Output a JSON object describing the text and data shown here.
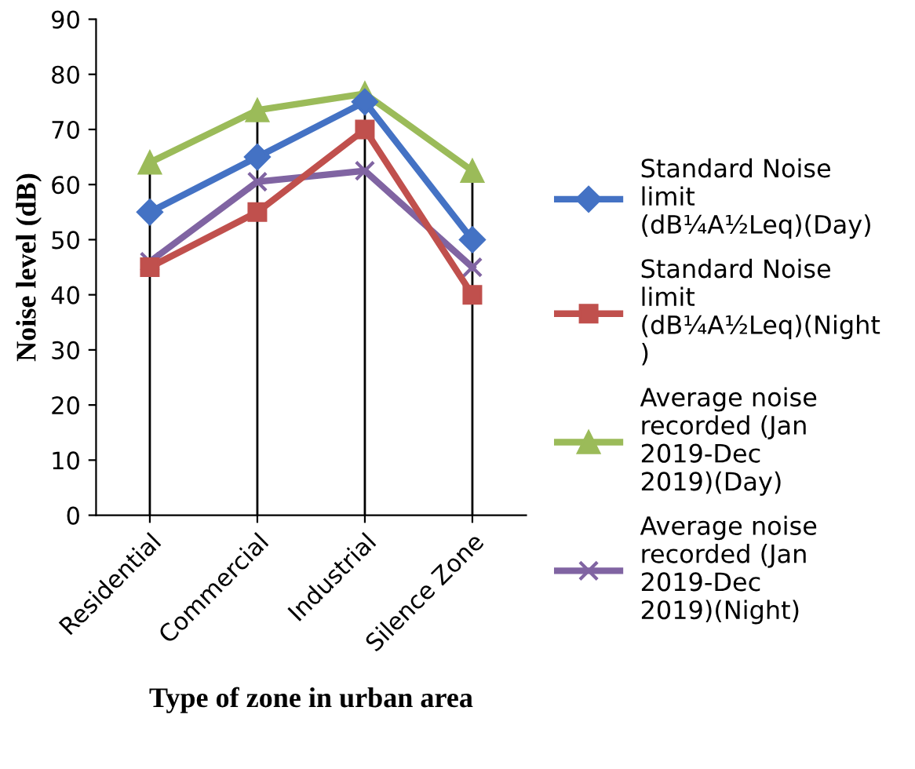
{
  "chart_data": {
    "type": "line",
    "xlabel": "Type of zone in urban area",
    "ylabel": "Noise level (dB)",
    "categories": [
      "Residential",
      "Commercial",
      "Industrial",
      "Silence Zone"
    ],
    "series": [
      {
        "name": "Standard Noise limit (dB¼A½Leq)(Day)",
        "color": "#4472c4",
        "marker": "diamond",
        "values": [
          55,
          65,
          75,
          50
        ]
      },
      {
        "name": "Standard Noise limit (dB¼A½Leq)(Night)",
        "color": "#c0504d",
        "marker": "square",
        "values": [
          45,
          55,
          70,
          40
        ]
      },
      {
        "name": "Average noise recorded (Jan 2019-Dec 2019)(Day)",
        "color": "#9bbb59",
        "marker": "triangle",
        "values": [
          64,
          73.5,
          76.5,
          62.5
        ]
      },
      {
        "name": "Average noise recorded (Jan 2019-Dec 2019)(Night)",
        "color": "#8064a2",
        "marker": "cross",
        "values": [
          46,
          60.5,
          62.5,
          45
        ]
      }
    ],
    "ref_lines": [
      {
        "axis": "x",
        "value": "Residential",
        "color": "#000000"
      },
      {
        "axis": "x",
        "value": "Commercial",
        "color": "#000000"
      },
      {
        "axis": "x",
        "value": "Industrial",
        "color": "#000000"
      },
      {
        "axis": "x",
        "value": "Silence Zone",
        "color": "#000000"
      }
    ],
    "ylim": [
      0,
      90
    ],
    "yticks": [
      0,
      10,
      20,
      30,
      40,
      50,
      60,
      70,
      80,
      90
    ],
    "grid": false,
    "legend": "right",
    "line_style": "solid"
  }
}
